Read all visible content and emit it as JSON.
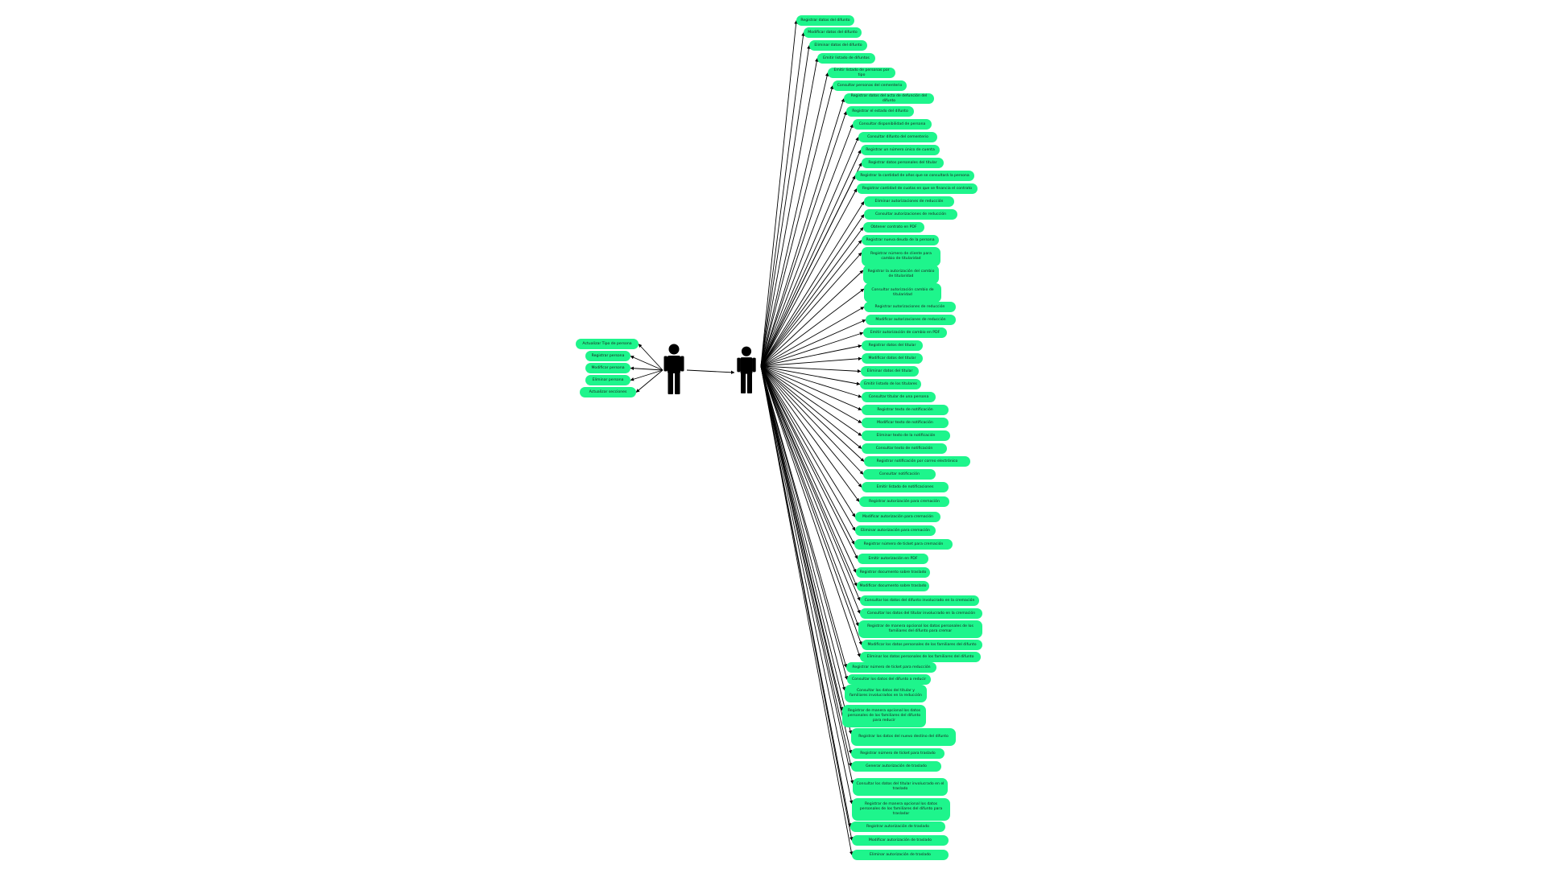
{
  "colors": {
    "node_fill": "#1ef58c",
    "edge": "#000000",
    "actor": "#000000"
  },
  "actors": [
    {
      "name": "actor-left",
      "icon": "person-icon"
    },
    {
      "name": "actor-right",
      "icon": "person-icon"
    }
  ],
  "left_use_cases": [
    "Actualizar Tipo de persona",
    "Registrar persona",
    "Modificar persona",
    "Eliminar persona",
    "Actualizar secciones"
  ],
  "right_use_cases": [
    "Registrar datos del difunto",
    "Modificar datos del difunto",
    "Eliminar datos del difunto",
    "Emitir listado de difuntos",
    "Emitir listado de personas por tipo",
    "Consultar personas del cementerio",
    "Registrar datos del acta de defunción del difunto",
    "Registrar el estado del difunto",
    "Consultar disponibilidad de persona",
    "Consultar difunto del cementerio",
    "Registrar un número único de cuenta",
    "Registrar datos personales del titular",
    "Registrar la cantidad de años que se consultará la persona",
    "Registrar cantidad de cuotas en que se financia el contrato",
    "Eliminar autorizaciones de reducción",
    "Consultar autorizaciones de reducción",
    "Obtener contrato en PDF",
    "Registrar nueva deuda de la persona",
    "Registrar número de cliente para cambio de titularidad",
    "Registrar la autorización del cambio de titularidad",
    "Consultar autorización cambio de titularidad",
    "Registrar autorizaciones de reducción",
    "Modificar autorizaciones de reducción",
    "Emitir autorización de cambio en PDF",
    "Registrar datos del titular",
    "Modificar datos del titular",
    "Eliminar datos del titular",
    "Emitir listado de los titulares",
    "Consultar titular de una persona",
    "Registrar texto de notificación",
    "Modificar texto de notificación",
    "Eliminar texto de la notificación",
    "Consultar texto de notificación",
    "Registrar notificación por correo electrónico",
    "Consultar notificación",
    "Emitir listado de notificaciones",
    "Registrar autorización para cremación",
    "Modificar autorización para cremación",
    "Eliminar autorización para cremación",
    "Registrar número de ticket para cremación",
    "Emitir autorización en PDF",
    "Registrar documento sobre traslado",
    "Modificar documento sobre traslado",
    "Consultar los datos del difunto involucrado en la cremación",
    "Consultar los datos del titular involucrado en la cremación",
    "Registrar de manera opcional los datos personales de los familiares del difunto para cremar",
    "Modificar los datos personales de los familiares del difunto",
    "Eliminar los datos personales de los familiares del difunto",
    "Registrar número de ticket para reducción",
    "Consultar los datos del difunto a reducir",
    "Consultar los datos del titular y familiares involucrados en la reducción",
    "Registrar de manera opcional los datos personales de los familiares del difunto para reducir",
    "Registrar los datos del nuevo destino del difunto",
    "Registrar número de ticket para traslado",
    "Generar autorización de traslado",
    "Consultar los datos del titular involucrado en el traslado",
    "Registrar de manera opcional los datos personales de los familiares del difunto para trasladar",
    "Registrar autorización de traslado",
    "Modificar autorización de traslado",
    "Eliminar autorización de traslado"
  ]
}
